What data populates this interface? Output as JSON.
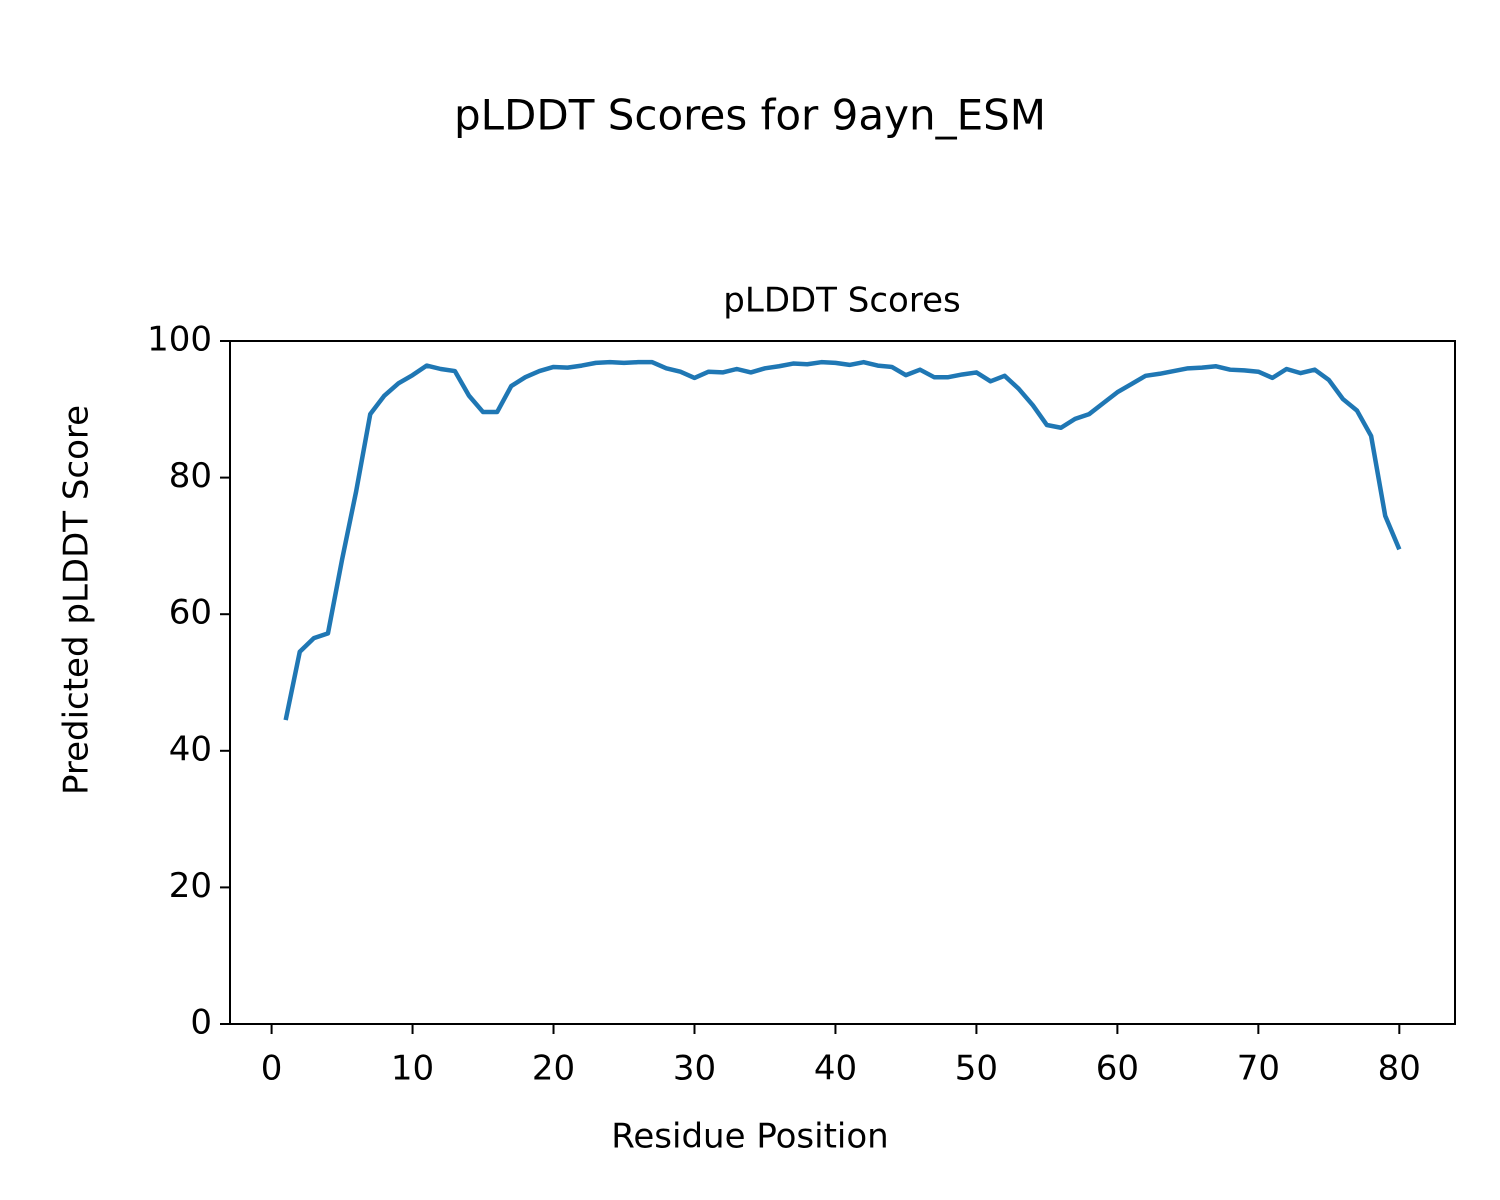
{
  "chart_data": {
    "type": "line",
    "suptitle": "pLDDT Scores for 9ayn_ESM",
    "title": "pLDDT Scores",
    "x_label": "Residue Position",
    "y_label": "Predicted pLDDT Score",
    "x": [
      1,
      2,
      3,
      4,
      5,
      6,
      7,
      8,
      9,
      10,
      11,
      12,
      13,
      14,
      15,
      16,
      17,
      18,
      19,
      20,
      21,
      22,
      23,
      24,
      25,
      26,
      27,
      28,
      29,
      30,
      31,
      32,
      33,
      34,
      35,
      36,
      37,
      38,
      39,
      40,
      41,
      42,
      43,
      44,
      45,
      46,
      47,
      48,
      49,
      50,
      51,
      52,
      53,
      54,
      55,
      56,
      57,
      58,
      59,
      60,
      61,
      62,
      63,
      64,
      65,
      66,
      67,
      68,
      69,
      70,
      71,
      72,
      73,
      74,
      75,
      76,
      77,
      78,
      79,
      80
    ],
    "series": [
      {
        "name": "pLDDT",
        "color": "#1f77b4",
        "values": [
          44.5,
          54.5,
          56.5,
          57.2,
          68,
          78,
          89.3,
          92,
          93.8,
          95,
          96.4,
          95.9,
          95.6,
          92,
          89.6,
          89.6,
          93.4,
          94.7,
          95.6,
          96.2,
          96.1,
          96.4,
          96.8,
          96.9,
          96.8,
          96.9,
          96.9,
          96,
          95.5,
          94.6,
          95.5,
          95.4,
          95.9,
          95.4,
          96,
          96.3,
          96.7,
          96.6,
          96.9,
          96.8,
          96.5,
          96.9,
          96.4,
          96.2,
          95,
          95.8,
          94.7,
          94.7,
          95.1,
          95.4,
          94.1,
          94.9,
          93,
          90.6,
          87.7,
          87.3,
          88.6,
          89.3,
          90.9,
          92.5,
          93.7,
          94.9,
          95.2,
          95.6,
          96,
          96.1,
          96.3,
          95.8,
          95.7,
          95.5,
          94.6,
          95.9,
          95.3,
          95.8,
          94.3,
          91.5,
          89.8,
          86.1,
          74.4,
          69.5
        ]
      }
    ],
    "xlim": [
      -2.95,
      83.95
    ],
    "xticks": [
      0,
      10,
      20,
      30,
      40,
      50,
      60,
      70,
      80
    ],
    "ylim": [
      0,
      100
    ],
    "yticks": [
      0,
      20,
      40,
      60,
      80,
      100
    ],
    "grid": false
  }
}
